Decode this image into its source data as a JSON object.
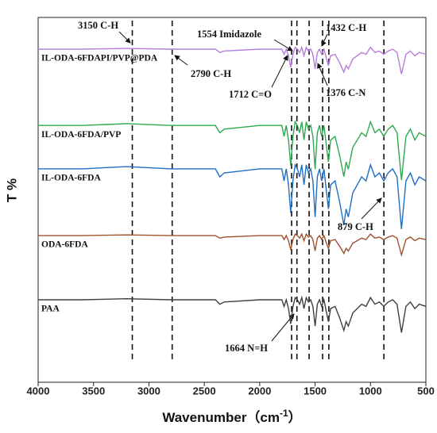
{
  "chart_data": {
    "type": "line",
    "xlabel_parts": [
      "Wavenumber（cm",
      "-1",
      "）"
    ],
    "ylabel": "T %",
    "xlim": [
      4000,
      500
    ],
    "xticks": [
      4000,
      3500,
      3000,
      2500,
      2000,
      1500,
      1000,
      500
    ],
    "ylim": [
      0,
      100
    ],
    "markers": [
      3150,
      2790,
      1712,
      1664,
      1554,
      1432,
      1376,
      879
    ],
    "annotations": [
      "3150 C-H",
      "2790 C-H",
      "1554 Imidazole",
      "1432 C-H",
      "1712 C=O",
      "1376 C-N",
      "879 C-H",
      "1664 N=H"
    ],
    "x": [
      4000,
      3600,
      3200,
      2800,
      2400,
      2360,
      2320,
      2000,
      1800,
      1780,
      1760,
      1740,
      1720,
      1700,
      1680,
      1660,
      1640,
      1620,
      1600,
      1580,
      1560,
      1540,
      1520,
      1500,
      1480,
      1460,
      1440,
      1420,
      1400,
      1380,
      1360,
      1320,
      1280,
      1240,
      1220,
      1200,
      1160,
      1120,
      1080,
      1040,
      1000,
      960,
      920,
      880,
      840,
      800,
      760,
      720,
      680,
      640,
      600,
      560,
      500
    ],
    "series": [
      {
        "name": "IL-ODA-6FDAPI/PVP@PDA",
        "color": "#b57edc",
        "values": [
          91.3,
          91.3,
          91.5,
          91.3,
          91.3,
          90.4,
          90.8,
          91.3,
          91.3,
          89.9,
          91.3,
          89.5,
          86.3,
          89.9,
          91.8,
          91.3,
          90.4,
          91.8,
          89.5,
          91.8,
          90.8,
          91.3,
          89.9,
          85.9,
          90.4,
          91.3,
          89.9,
          91.3,
          89,
          86.8,
          89.5,
          89.9,
          87.7,
          85,
          86.8,
          85.9,
          88.6,
          89.5,
          90.4,
          89.9,
          91.8,
          90.4,
          90.8,
          89.9,
          90.8,
          91.3,
          90.4,
          84.5,
          89.9,
          90.8,
          89.5,
          90.4,
          89.9
        ]
      },
      {
        "name": "IL-ODA-6FDA/PVP",
        "color": "#2ea84f",
        "values": [
          70.4,
          70.4,
          70.9,
          70.4,
          70.4,
          68.4,
          69.4,
          70.4,
          70.4,
          67.4,
          70.4,
          66.4,
          59.4,
          67.4,
          71.4,
          70.4,
          68.4,
          71.4,
          66.4,
          71.4,
          69.4,
          70.4,
          67.4,
          58.4,
          68.4,
          70.4,
          67.4,
          70.4,
          65.4,
          60.4,
          66.4,
          67.4,
          62.4,
          56.4,
          60.4,
          58.4,
          64.4,
          66.4,
          68.4,
          67.4,
          71.4,
          68.4,
          69.4,
          67.4,
          69.4,
          70.4,
          68.4,
          55.4,
          67.4,
          69.4,
          66.4,
          68.4,
          67.4
        ]
      },
      {
        "name": "IL-ODA-6FDA",
        "color": "#1f6fc4",
        "values": [
          58.5,
          58.5,
          59.1,
          58.5,
          58.5,
          56.3,
          57.4,
          58.5,
          58.5,
          55.2,
          58.5,
          54.1,
          46.4,
          55.2,
          59.6,
          58.5,
          56.3,
          59.6,
          54.1,
          59.6,
          57.4,
          58.5,
          55.2,
          45.3,
          56.3,
          58.5,
          55.2,
          58.5,
          53,
          47.5,
          54.1,
          55.2,
          49.7,
          43.1,
          47.5,
          45.3,
          51.9,
          54.1,
          56.3,
          55.2,
          59.6,
          56.3,
          57.4,
          55.2,
          57.4,
          58.5,
          56.3,
          42,
          55.2,
          57.4,
          54.1,
          56.3,
          55.2
        ]
      },
      {
        "name": "ODA-6FDA",
        "color": "#a0522d",
        "values": [
          40.2,
          40.2,
          40.4,
          40.2,
          40.2,
          39.5,
          39.8,
          40.2,
          40.2,
          39.1,
          40.2,
          38.8,
          36.3,
          39.1,
          40.6,
          40.2,
          39.5,
          40.6,
          38.8,
          40.6,
          39.8,
          40.2,
          39.1,
          36,
          39.5,
          40.2,
          39.1,
          40.2,
          38.4,
          36.7,
          38.8,
          39.1,
          37.4,
          35.3,
          36.7,
          36,
          38.1,
          38.8,
          39.5,
          39.1,
          40.6,
          39.5,
          39.8,
          39.1,
          39.8,
          40.2,
          39.5,
          34.9,
          39.1,
          39.8,
          38.8,
          39.5,
          39.1
        ]
      },
      {
        "name": "PAA",
        "color": "#404040",
        "values": [
          22.6,
          22.6,
          22.9,
          22.6,
          22.6,
          21.4,
          22,
          22.6,
          22.6,
          20.8,
          22.6,
          20.2,
          16,
          20.8,
          23.2,
          22.6,
          21.4,
          23.2,
          20.2,
          23.2,
          22,
          22.6,
          20.8,
          15.4,
          21.4,
          22.6,
          20.8,
          22.6,
          19.6,
          16.6,
          20.2,
          20.8,
          17.8,
          14.2,
          16.6,
          15.4,
          19,
          20.2,
          21.4,
          20.8,
          23.2,
          21.4,
          22,
          20.8,
          22,
          22.6,
          21.4,
          13.6,
          20.8,
          22,
          20.2,
          21.4,
          20.8
        ]
      }
    ]
  }
}
